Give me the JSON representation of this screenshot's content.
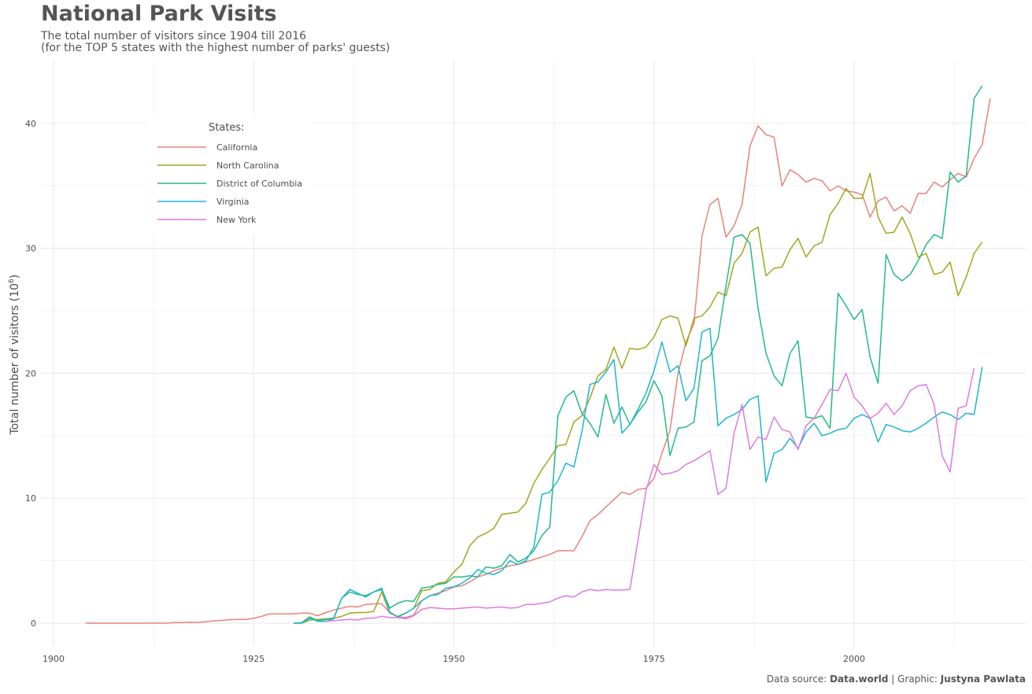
{
  "header": {
    "title": "National Park Visits",
    "subtitle_line1": "The total number of visitors since 1904 till 2016",
    "subtitle_line2": "(for the TOP 5 states with the highest number of parks' guests)"
  },
  "caption": {
    "source_prefix": "Data source: ",
    "source_name": "Data.world",
    "separator": " | Graphic: ",
    "author": "Justyna Pawlata"
  },
  "colors": {
    "California": "#e7837a",
    "North Carolina": "#a3a520",
    "District of Columbia": "#22bb83",
    "Virginia": "#1db5cf",
    "New York": "#de79e5",
    "grid": "#ebebeb",
    "text": "#4d4d4d"
  },
  "chart_data": {
    "type": "line",
    "title": "National Park Visits",
    "subtitle": "The total number of visitors since 1904 till 2016 (for the TOP 5 states with the highest number of parks' guests)",
    "xlabel": "",
    "ylabel": "Total number of visitors (10",
    "ylabel_superscript": "6",
    "xlim": [
      1900,
      2016
    ],
    "ylim": [
      0,
      43
    ],
    "x_ticks": [
      1900,
      1925,
      1950,
      1975,
      2000
    ],
    "y_ticks": [
      0,
      10,
      20,
      30,
      40
    ],
    "grid": true,
    "legend": {
      "title": "States:",
      "position": "top-left"
    },
    "series": [
      {
        "name": "California",
        "x_start": 1904,
        "values": [
          0.0,
          0.0,
          0.0,
          0.0,
          0.0,
          0.0,
          0.0,
          0.0,
          0.0,
          0.0,
          0.0,
          0.05,
          0.05,
          0.08,
          0.06,
          0.12,
          0.18,
          0.22,
          0.28,
          0.3,
          0.3,
          0.4,
          0.55,
          0.75,
          0.75,
          0.75,
          0.75,
          0.8,
          0.8,
          0.6,
          0.85,
          1.05,
          1.2,
          1.35,
          1.3,
          1.5,
          1.55,
          1.55,
          0.85,
          0.5,
          0.45,
          0.65,
          1.8,
          2.2,
          2.4,
          2.6,
          2.9,
          3.0,
          3.3,
          3.7,
          3.9,
          4.2,
          4.4,
          4.6,
          4.7,
          4.9,
          5.1,
          5.3,
          5.5,
          5.8,
          5.8,
          5.8,
          6.9,
          8.2,
          8.7,
          9.3,
          9.9,
          10.5,
          10.3,
          10.7,
          10.8,
          11.6,
          13.6,
          15.4,
          20.0,
          22.5,
          24.0,
          31.0,
          33.5,
          34.0,
          30.9,
          31.8,
          33.5,
          38.2,
          39.8,
          39.1,
          38.9,
          35.0,
          36.3,
          35.9,
          35.3,
          35.6,
          35.4,
          34.6,
          35.0,
          34.6,
          34.5,
          34.3,
          32.5,
          33.8,
          34.1,
          33.0,
          33.4,
          32.8,
          34.4,
          34.4,
          35.3,
          34.9,
          35.5,
          36.0,
          35.7,
          37.2,
          38.3,
          42.0
        ]
      },
      {
        "name": "North Carolina",
        "x_start": 1931,
        "values": [
          0.0,
          0.25,
          0.3,
          0.35,
          0.4,
          0.55,
          0.8,
          0.85,
          0.85,
          0.95,
          2.5,
          0.8,
          0.55,
          0.8,
          1.2,
          2.6,
          2.7,
          3.2,
          3.3,
          4.1,
          4.7,
          6.2,
          6.9,
          7.2,
          7.6,
          8.7,
          8.8,
          8.9,
          9.6,
          11.2,
          12.3,
          13.2,
          14.2,
          14.3,
          16.1,
          16.6,
          18.0,
          19.8,
          20.3,
          22.1,
          20.4,
          22.0,
          21.9,
          22.1,
          22.9,
          24.3,
          24.6,
          24.4,
          22.2,
          24.4,
          24.6,
          25.3,
          26.5,
          26.2,
          28.8,
          29.6,
          31.3,
          31.7,
          27.8,
          28.4,
          28.5,
          29.9,
          30.8,
          29.3,
          30.2,
          30.5,
          32.7,
          33.6,
          34.8,
          34.0,
          34.0,
          36.0,
          32.5,
          31.2,
          31.3,
          32.5,
          31.2,
          29.3,
          29.6,
          27.9,
          28.1,
          28.9,
          26.2,
          27.7,
          29.6,
          30.5
        ]
      },
      {
        "name": "District of Columbia",
        "x_start": 1930,
        "values": [
          0.0,
          0.05,
          0.5,
          0.2,
          0.3,
          0.4,
          2.0,
          2.5,
          2.3,
          2.2,
          2.5,
          2.7,
          1.2,
          1.6,
          1.8,
          1.75,
          2.8,
          2.9,
          3.1,
          3.2,
          3.7,
          3.7,
          3.8,
          3.7,
          4.5,
          4.4,
          4.6,
          5.5,
          4.9,
          5.2,
          5.8,
          7.0,
          7.7,
          16.6,
          18.1,
          18.6,
          16.8,
          16.0,
          14.9,
          18.3,
          16.0,
          17.3,
          15.9,
          16.9,
          17.7,
          19.4,
          18.2,
          13.4,
          15.6,
          15.7,
          16.1,
          21.0,
          21.4,
          22.8,
          27.0,
          30.9,
          31.1,
          30.4,
          25.2,
          21.6,
          19.8,
          19.0,
          21.6,
          22.6,
          16.5,
          16.4,
          16.6,
          15.6,
          26.4,
          25.4,
          24.3,
          25.1,
          21.3,
          19.2,
          29.5,
          27.9,
          27.4,
          27.9,
          29.0,
          30.3,
          31.1,
          30.8,
          36.1,
          35.3,
          35.8,
          42.0,
          43.0
        ]
      },
      {
        "name": "Virginia",
        "x_start": 1930,
        "values": [
          0.0,
          0.0,
          0.4,
          0.15,
          0.15,
          0.35,
          2.0,
          2.7,
          2.4,
          2.1,
          2.5,
          2.8,
          0.9,
          0.5,
          0.8,
          1.2,
          1.8,
          2.2,
          2.3,
          2.8,
          2.9,
          3.2,
          3.6,
          4.3,
          4.0,
          3.9,
          4.2,
          5.0,
          4.7,
          5.0,
          6.1,
          10.3,
          10.5,
          11.4,
          12.8,
          12.5,
          15.3,
          19.1,
          19.3,
          20.1,
          21.1,
          15.2,
          15.9,
          17.1,
          18.4,
          20.2,
          22.5,
          20.1,
          20.6,
          17.8,
          18.8,
          23.3,
          23.6,
          15.8,
          16.4,
          16.7,
          17.1,
          17.9,
          18.2,
          11.3,
          13.6,
          13.9,
          14.8,
          14.0,
          15.3,
          16.0,
          15.0,
          15.2,
          15.5,
          15.6,
          16.4,
          16.7,
          16.4,
          14.5,
          15.9,
          15.7,
          15.4,
          15.3,
          15.6,
          16.0,
          16.5,
          16.9,
          16.7,
          16.3,
          16.8,
          16.7,
          20.5
        ]
      },
      {
        "name": "New York",
        "x_start": 1934,
        "values": [
          0.15,
          0.2,
          0.25,
          0.3,
          0.25,
          0.4,
          0.4,
          0.55,
          0.45,
          0.45,
          0.35,
          0.6,
          1.1,
          1.25,
          1.2,
          1.15,
          1.15,
          1.2,
          1.25,
          1.3,
          1.2,
          1.25,
          1.3,
          1.2,
          1.25,
          1.5,
          1.5,
          1.6,
          1.7,
          2.0,
          2.2,
          2.1,
          2.5,
          2.7,
          2.6,
          2.7,
          2.65,
          2.65,
          2.7,
          6.6,
          10.6,
          12.7,
          11.9,
          12.0,
          12.2,
          12.7,
          13.0,
          13.4,
          13.8,
          10.3,
          10.8,
          15.2,
          17.5,
          13.9,
          14.9,
          14.7,
          16.5,
          15.5,
          15.3,
          13.9,
          15.8,
          16.4,
          17.5,
          18.7,
          18.6,
          20.0,
          18.1,
          17.4,
          16.4,
          16.8,
          17.6,
          16.7,
          17.4,
          18.6,
          19.0,
          19.1,
          17.5,
          13.4,
          12.1,
          17.2,
          17.4,
          20.4
        ]
      }
    ]
  }
}
